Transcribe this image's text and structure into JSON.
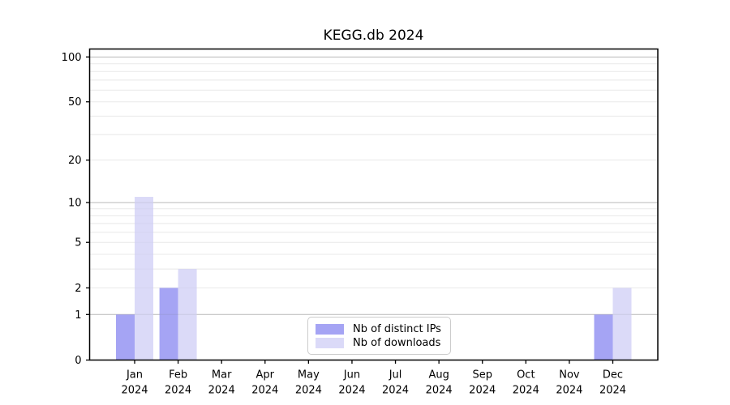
{
  "chart_data": {
    "type": "bar",
    "title": "KEGG.db 2024",
    "categories": [
      "Jan 2024",
      "Feb 2024",
      "Mar 2024",
      "Apr 2024",
      "May 2024",
      "Jun 2024",
      "Jul 2024",
      "Aug 2024",
      "Sep 2024",
      "Oct 2024",
      "Nov 2024",
      "Dec 2024"
    ],
    "series": [
      {
        "name": "Nb of distinct IPs",
        "color": "#a5a4f4",
        "values": [
          1,
          2,
          0,
          0,
          0,
          0,
          0,
          0,
          0,
          0,
          0,
          1
        ]
      },
      {
        "name": "Nb of downloads",
        "color": "#dbdaf8",
        "values": [
          11,
          3,
          0,
          0,
          0,
          0,
          0,
          0,
          0,
          0,
          0,
          2
        ]
      }
    ],
    "xlabel": "",
    "ylabel": "",
    "yscale": "log10(value+1)",
    "yticks": [
      0,
      1,
      2,
      5,
      10,
      20,
      50,
      100
    ],
    "ylim": [
      0,
      113
    ],
    "grid": {
      "on": true,
      "major_values": [
        1,
        10,
        100
      ],
      "minor_values": [
        2,
        3,
        4,
        5,
        6,
        7,
        8,
        9,
        20,
        30,
        40,
        50,
        60,
        70,
        80,
        90
      ],
      "major_color": "#c9c9c9",
      "minor_color": "#efefef"
    },
    "legend": {
      "position": "bottom-center"
    },
    "axis_color": "#000000"
  }
}
